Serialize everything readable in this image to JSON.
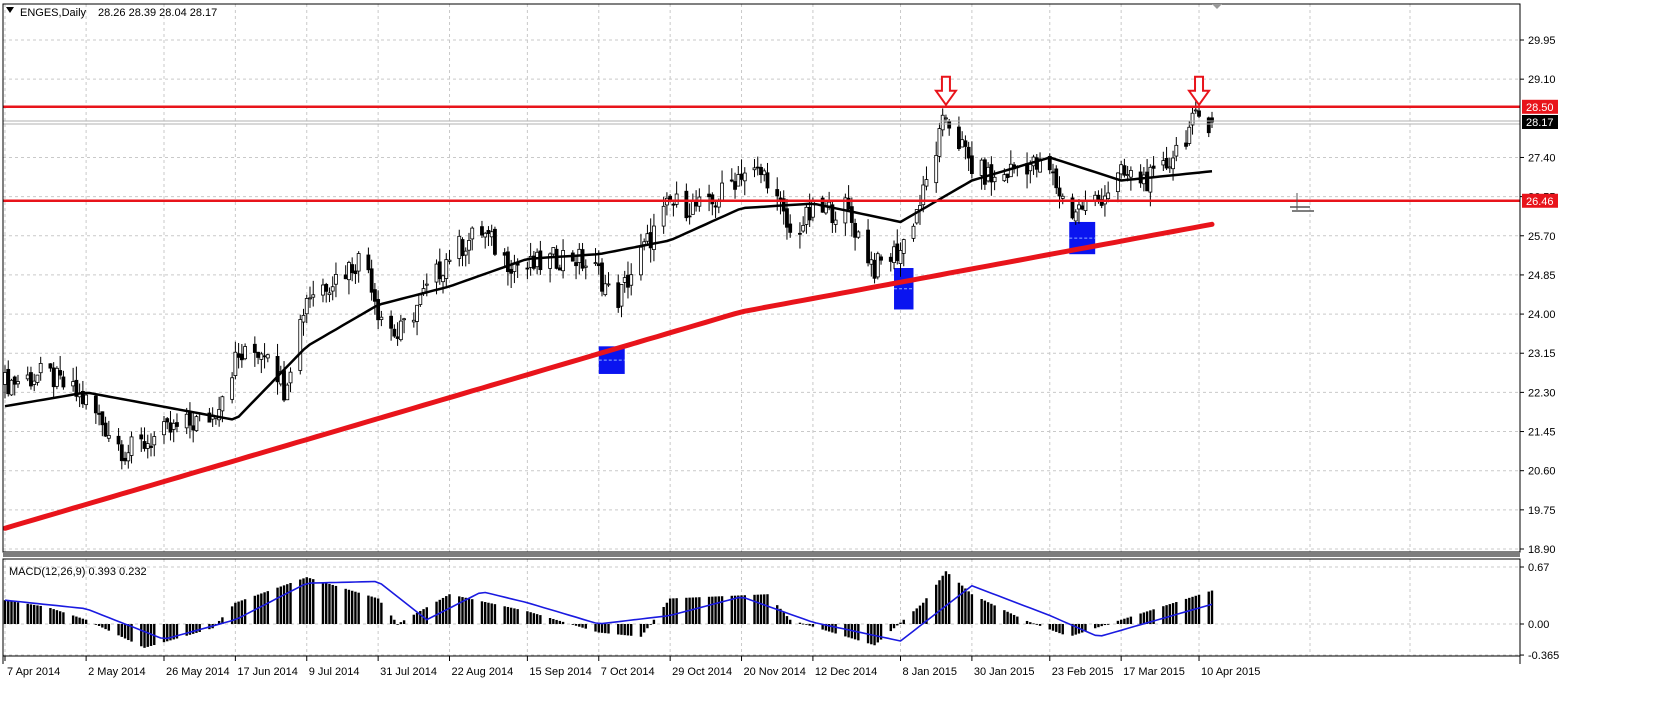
{
  "header": {
    "symbol": "ENGES,Daily",
    "ohlc": "28.26 28.39 28.04 28.17"
  },
  "macd": {
    "label": "MACD(12,26,9) 0.393 0.232",
    "ticks": [
      "0.67",
      "0.00",
      "-0.365"
    ]
  },
  "price_ticks": [
    "29.95",
    "29.10",
    "27.40",
    "26.55",
    "25.70",
    "24.85",
    "24.00",
    "23.15",
    "22.30",
    "21.45",
    "20.60",
    "19.75",
    "18.90"
  ],
  "price_tags": {
    "resistance": "28.50",
    "current": "28.17",
    "support": "26.46"
  },
  "date_labels": [
    "7 Apr 2014",
    "2 May 2014",
    "26 May 2014",
    "17 Jun 2014",
    "9 Jul 2014",
    "31 Jul 2014",
    "22 Aug 2014",
    "15 Sep 2014",
    "7 Oct 2014",
    "29 Oct 2014",
    "20 Nov 2014",
    "12 Dec 2014",
    "8 Jan 2015",
    "30 Jan 2015",
    "23 Feb 2015",
    "17 Mar 2015",
    "10 Apr 2015"
  ],
  "colors": {
    "levels": "#e8141b",
    "ma_long": "#e8141b",
    "ma_short": "#000000",
    "zones": "#0a14f0",
    "signal": "#1a1ae0",
    "candles": "#000000"
  },
  "chart_data": {
    "type": "candlestick",
    "symbol": "ENGES",
    "timeframe": "Daily",
    "ohlc_last": {
      "open": 28.26,
      "high": 28.39,
      "low": 28.04,
      "close": 28.17
    },
    "ylim": [
      18.9,
      30.5
    ],
    "price_anchors": [
      {
        "date": "7 Apr 2014",
        "close": 22.5
      },
      {
        "date": "20 Apr 2014",
        "close": 22.7
      },
      {
        "date": "2 May 2014",
        "close": 22.1
      },
      {
        "date": "14 May 2014",
        "close": 21.0
      },
      {
        "date": "26 May 2014",
        "close": 21.4
      },
      {
        "date": "10 Jun 2014",
        "close": 21.8
      },
      {
        "date": "17 Jun 2014",
        "close": 23.0
      },
      {
        "date": "27 Jun 2014",
        "close": 23.3
      },
      {
        "date": "2 Jul 2014",
        "close": 22.4
      },
      {
        "date": "9 Jul 2014",
        "close": 24.4
      },
      {
        "date": "20 Jul 2014",
        "close": 24.9
      },
      {
        "date": "27 Jul 2014",
        "close": 25.3
      },
      {
        "date": "31 Jul 2014",
        "close": 24.1
      },
      {
        "date": "6 Aug 2014",
        "close": 23.5
      },
      {
        "date": "22 Aug 2014",
        "close": 25.3
      },
      {
        "date": "1 Sep 2014",
        "close": 25.8
      },
      {
        "date": "8 Sep 2014",
        "close": 25.2
      },
      {
        "date": "15 Sep 2014",
        "close": 25.0
      },
      {
        "date": "28 Sep 2014",
        "close": 25.3
      },
      {
        "date": "7 Oct 2014",
        "close": 24.9
      },
      {
        "date": "12 Oct 2014",
        "close": 24.2
      },
      {
        "date": "20 Oct 2014",
        "close": 25.3
      },
      {
        "date": "29 Oct 2014",
        "close": 26.4
      },
      {
        "date": "10 Nov 2014",
        "close": 26.3
      },
      {
        "date": "20 Nov 2014",
        "close": 27.1
      },
      {
        "date": "28 Nov 2014",
        "close": 27.0
      },
      {
        "date": "5 Dec 2014",
        "close": 25.7
      },
      {
        "date": "12 Dec 2014",
        "close": 26.2
      },
      {
        "date": "22 Dec 2014",
        "close": 26.3
      },
      {
        "date": "31 Dec 2014",
        "close": 25.0
      },
      {
        "date": "8 Jan 2015",
        "close": 25.4
      },
      {
        "date": "15 Jan 2015",
        "close": 26.6
      },
      {
        "date": "22 Jan 2015",
        "close": 28.3
      },
      {
        "date": "30 Jan 2015",
        "close": 27.2
      },
      {
        "date": "6 Feb 2015",
        "close": 26.9
      },
      {
        "date": "15 Feb 2015",
        "close": 27.3
      },
      {
        "date": "23 Feb 2015",
        "close": 27.1
      },
      {
        "date": "1 Mar 2015",
        "close": 26.2
      },
      {
        "date": "10 Mar 2015",
        "close": 26.5
      },
      {
        "date": "17 Mar 2015",
        "close": 27.0
      },
      {
        "date": "28 Mar 2015",
        "close": 26.9
      },
      {
        "date": "3 Apr 2015",
        "close": 27.6
      },
      {
        "date": "10 Apr 2015",
        "close": 28.3
      },
      {
        "date": "14 Apr 2015",
        "close": 28.17
      }
    ],
    "horizontal_levels": [
      28.5,
      26.46
    ],
    "current_price": 28.17,
    "moving_average_long": [
      {
        "date": "7 Apr 2014",
        "value": 19.35
      },
      {
        "date": "20 Nov 2014",
        "value": 24.05
      },
      {
        "date": "14 Apr 2015",
        "value": 25.95
      }
    ],
    "moving_average_short_anchors": [
      {
        "date": "7 Apr 2014",
        "value": 22.0
      },
      {
        "date": "2 May 2014",
        "value": 22.3
      },
      {
        "date": "17 Jun 2014",
        "value": 21.7
      },
      {
        "date": "9 Jul 2014",
        "value": 23.3
      },
      {
        "date": "31 Jul 2014",
        "value": 24.2
      },
      {
        "date": "22 Aug 2014",
        "value": 24.6
      },
      {
        "date": "15 Sep 2014",
        "value": 25.2
      },
      {
        "date": "7 Oct 2014",
        "value": 25.3
      },
      {
        "date": "29 Oct 2014",
        "value": 25.6
      },
      {
        "date": "20 Nov 2014",
        "value": 26.3
      },
      {
        "date": "12 Dec 2014",
        "value": 26.4
      },
      {
        "date": "8 Jan 2015",
        "value": 26.0
      },
      {
        "date": "30 Jan 2015",
        "value": 26.9
      },
      {
        "date": "23 Feb 2015",
        "value": 27.4
      },
      {
        "date": "17 Mar 2015",
        "value": 26.9
      },
      {
        "date": "14 Apr 2015",
        "value": 27.1
      }
    ],
    "zones": [
      {
        "date_from": "7 Oct 2014",
        "date_to": "15 Oct 2014",
        "price_from": 22.7,
        "price_to": 23.3
      },
      {
        "date_from": "6 Jan 2015",
        "date_to": "12 Jan 2015",
        "price_from": 24.1,
        "price_to": 25.0
      },
      {
        "date_from": "1 Mar 2015",
        "date_to": "9 Mar 2015",
        "price_from": 25.3,
        "price_to": 26.0
      }
    ],
    "arrows": [
      {
        "date": "22 Jan 2015",
        "price": 28.5
      },
      {
        "date": "10 Apr 2015",
        "price": 28.5
      }
    ],
    "macd": {
      "params": "12,26,9",
      "value": 0.393,
      "signal": 0.232,
      "ylim": [
        -0.365,
        0.67
      ],
      "histogram_anchors": [
        {
          "date": "7 Apr 2014",
          "value": 0.28
        },
        {
          "date": "20 Apr 2014",
          "value": 0.2
        },
        {
          "date": "2 May 2014",
          "value": 0.05
        },
        {
          "date": "20 May 2014",
          "value": -0.28
        },
        {
          "date": "10 Jun 2014",
          "value": -0.05
        },
        {
          "date": "17 Jun 2014",
          "value": 0.25
        },
        {
          "date": "9 Jul 2014",
          "value": 0.55
        },
        {
          "date": "31 Jul 2014",
          "value": 0.3
        },
        {
          "date": "6 Aug 2014",
          "value": 0.0
        },
        {
          "date": "22 Aug 2014",
          "value": 0.35
        },
        {
          "date": "15 Sep 2014",
          "value": 0.15
        },
        {
          "date": "7 Oct 2014",
          "value": -0.1
        },
        {
          "date": "20 Oct 2014",
          "value": -0.15
        },
        {
          "date": "29 Oct 2014",
          "value": 0.3
        },
        {
          "date": "28 Nov 2014",
          "value": 0.35
        },
        {
          "date": "5 Dec 2014",
          "value": 0.05
        },
        {
          "date": "31 Dec 2014",
          "value": -0.25
        },
        {
          "date": "15 Jan 2015",
          "value": 0.25
        },
        {
          "date": "22 Jan 2015",
          "value": 0.62
        },
        {
          "date": "30 Jan 2015",
          "value": 0.35
        },
        {
          "date": "15 Feb 2015",
          "value": 0.05
        },
        {
          "date": "1 Mar 2015",
          "value": -0.15
        },
        {
          "date": "17 Mar 2015",
          "value": 0.05
        },
        {
          "date": "14 Apr 2015",
          "value": 0.393
        }
      ],
      "signal_anchors": [
        {
          "date": "7 Apr 2014",
          "value": 0.28
        },
        {
          "date": "2 May 2014",
          "value": 0.18
        },
        {
          "date": "26 May 2014",
          "value": -0.18
        },
        {
          "date": "17 Jun 2014",
          "value": 0.05
        },
        {
          "date": "9 Jul 2014",
          "value": 0.48
        },
        {
          "date": "31 Jul 2014",
          "value": 0.5
        },
        {
          "date": "15 Aug 2014",
          "value": 0.05
        },
        {
          "date": "1 Sep 2014",
          "value": 0.38
        },
        {
          "date": "15 Sep 2014",
          "value": 0.25
        },
        {
          "date": "7 Oct 2014",
          "value": 0.0
        },
        {
          "date": "29 Oct 2014",
          "value": 0.1
        },
        {
          "date": "20 Nov 2014",
          "value": 0.32
        },
        {
          "date": "12 Dec 2014",
          "value": 0.02
        },
        {
          "date": "8 Jan 2015",
          "value": -0.2
        },
        {
          "date": "30 Jan 2015",
          "value": 0.45
        },
        {
          "date": "23 Feb 2015",
          "value": 0.1
        },
        {
          "date": "10 Mar 2015",
          "value": -0.15
        },
        {
          "date": "14 Apr 2015",
          "value": 0.232
        }
      ]
    }
  }
}
